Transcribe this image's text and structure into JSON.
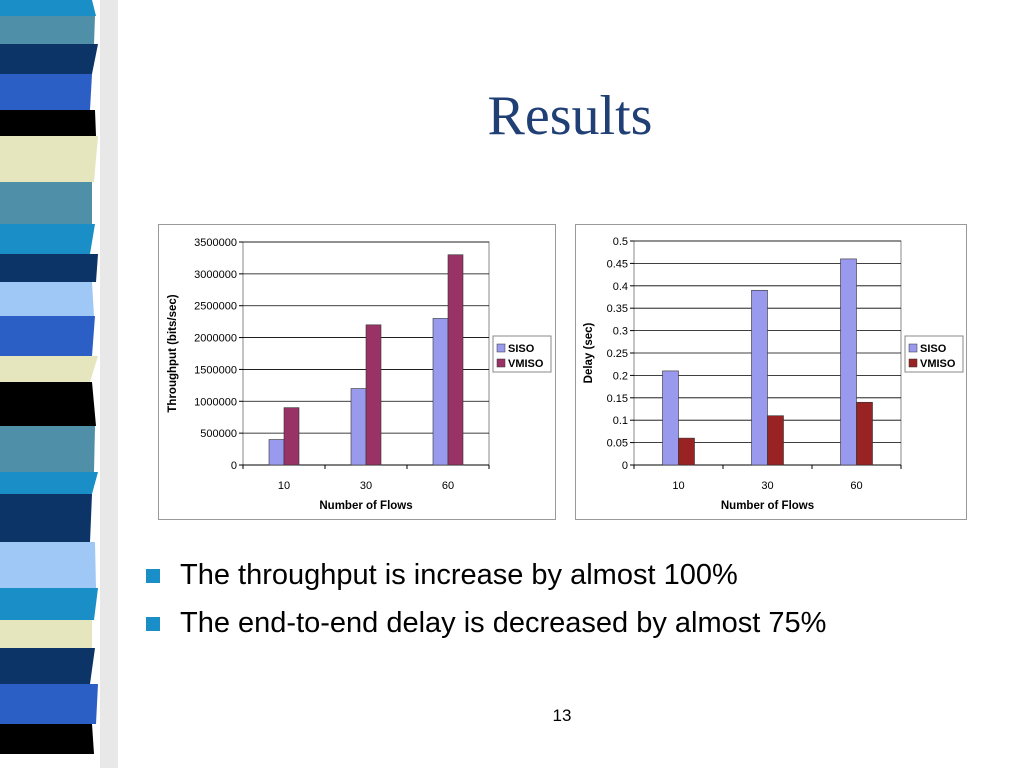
{
  "slide": {
    "title": "Results",
    "bullets": [
      "The throughput is increase by almost 100%",
      "The end-to-end delay is decreased by almost 75%"
    ],
    "page_number": "13",
    "bullet_color": "#1a8fc7",
    "title_color": "#1f3f75"
  },
  "chart_data": [
    {
      "type": "bar",
      "title": "",
      "categories": [
        "10",
        "30",
        "60"
      ],
      "series": [
        {
          "name": "SISO",
          "values": [
            400000,
            1200000,
            2300000
          ],
          "color": "#9999ee"
        },
        {
          "name": "VMISO",
          "values": [
            900000,
            2200000,
            3300000
          ],
          "color": "#993366"
        }
      ],
      "xlabel": "Number of Flows",
      "ylabel": "Throughput (bits/sec)",
      "ylim": [
        0,
        3500000
      ],
      "yticks": [
        "0",
        "500000",
        "1000000",
        "1500000",
        "2000000",
        "2500000",
        "3000000",
        "3500000"
      ],
      "grid": true,
      "legend": "right"
    },
    {
      "type": "bar",
      "title": "",
      "categories": [
        "10",
        "30",
        "60"
      ],
      "series": [
        {
          "name": "SISO",
          "values": [
            0.21,
            0.39,
            0.46
          ],
          "color": "#9999ee"
        },
        {
          "name": "VMISO",
          "values": [
            0.06,
            0.11,
            0.14
          ],
          "color": "#992222"
        }
      ],
      "xlabel": "Number of Flows",
      "ylabel": "Delay (sec)",
      "ylim": [
        0,
        0.5
      ],
      "yticks": [
        "0",
        "0.05",
        "0.1",
        "0.15",
        "0.2",
        "0.25",
        "0.3",
        "0.35",
        "0.4",
        "0.45",
        "0.5"
      ],
      "grid": true,
      "legend": "right"
    }
  ]
}
